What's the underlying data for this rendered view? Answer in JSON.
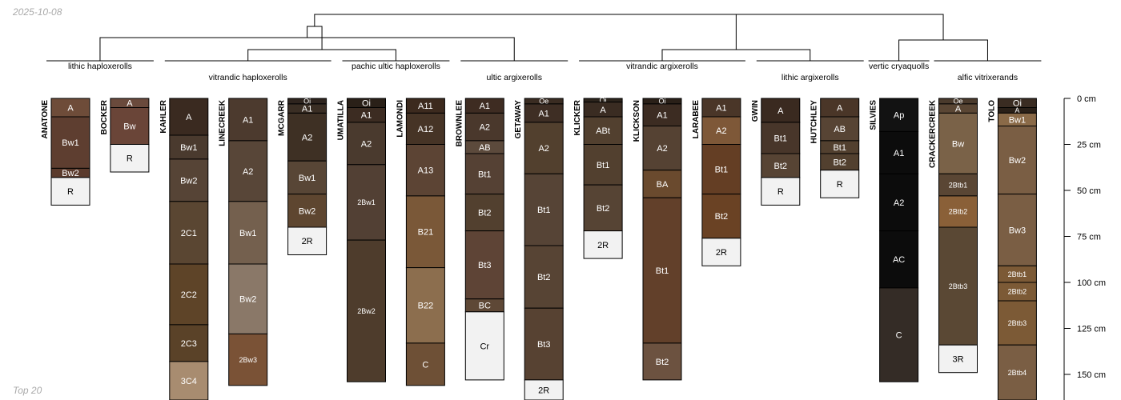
{
  "page": {
    "date": "2025-10-08",
    "footer": "Top 20"
  },
  "chart_data": {
    "type": "soil-profile-sketch",
    "title": "",
    "ylabel": "",
    "depth_unit": "cm",
    "ylim": [
      0,
      160
    ],
    "depth_ticks": [
      {
        "depth": 0,
        "label": "0 cm"
      },
      {
        "depth": 25,
        "label": "25 cm"
      },
      {
        "depth": 50,
        "label": "50 cm"
      },
      {
        "depth": 75,
        "label": "75 cm"
      },
      {
        "depth": 100,
        "label": "100 cm"
      },
      {
        "depth": 125,
        "label": "125 cm"
      },
      {
        "depth": 150,
        "label": "150 cm"
      }
    ],
    "groups": [
      {
        "label": "lithic haploxerolls",
        "members": [
          0,
          1
        ]
      },
      {
        "label": "vitrandic haploxerolls",
        "members": [
          2,
          3,
          4
        ]
      },
      {
        "label": "pachic ultic haploxerolls",
        "members": [
          5,
          6
        ]
      },
      {
        "label": "ultic argixerolls",
        "members": [
          7,
          8
        ]
      },
      {
        "label": "vitrandic argixerolls",
        "members": [
          9,
          10,
          11
        ]
      },
      {
        "label": "lithic argixerolls",
        "members": [
          12,
          13
        ]
      },
      {
        "label": "vertic cryaquolls",
        "members": [
          14
        ]
      },
      {
        "label": "alfic vitrixerands",
        "members": [
          15,
          16
        ]
      }
    ],
    "profiles": [
      {
        "name": "ANATONE",
        "horizons": [
          {
            "name": "A",
            "top": 0,
            "bottom": 10,
            "color": "#6e4c39"
          },
          {
            "name": "Bw1",
            "top": 10,
            "bottom": 38,
            "color": "#5e3e30"
          },
          {
            "name": "Bw2",
            "top": 38,
            "bottom": 43,
            "color": "#5a3a2c"
          },
          {
            "name": "R",
            "top": 43,
            "bottom": 58,
            "color": "#f2f2f2"
          }
        ]
      },
      {
        "name": "BOCKER",
        "horizons": [
          {
            "name": "A",
            "top": 0,
            "bottom": 5,
            "color": "#6a4a3c"
          },
          {
            "name": "Bw",
            "top": 5,
            "bottom": 25,
            "color": "#6a4538"
          },
          {
            "name": "R",
            "top": 25,
            "bottom": 40,
            "color": "#f2f2f2"
          }
        ]
      },
      {
        "name": "KAHLER",
        "horizons": [
          {
            "name": "A",
            "top": 0,
            "bottom": 20,
            "color": "#3a2a20"
          },
          {
            "name": "Bw1",
            "top": 20,
            "bottom": 33,
            "color": "#4a3a2e"
          },
          {
            "name": "Bw2",
            "top": 33,
            "bottom": 56,
            "color": "#564436"
          },
          {
            "name": "2C1",
            "top": 56,
            "bottom": 90,
            "color": "#5a4632"
          },
          {
            "name": "2C2",
            "top": 90,
            "bottom": 123,
            "color": "#5e4428"
          },
          {
            "name": "2C3",
            "top": 123,
            "bottom": 143,
            "color": "#5a4228"
          },
          {
            "name": "3C4",
            "top": 143,
            "bottom": 165,
            "color": "#a88c70"
          }
        ]
      },
      {
        "name": "LINECREEK",
        "horizons": [
          {
            "name": "A1",
            "top": 0,
            "bottom": 23,
            "color": "#4c3a2e"
          },
          {
            "name": "A2",
            "top": 23,
            "bottom": 56,
            "color": "#584638"
          },
          {
            "name": "Bw1",
            "top": 56,
            "bottom": 90,
            "color": "#74604e"
          },
          {
            "name": "Bw2",
            "top": 90,
            "bottom": 128,
            "color": "#8a7868"
          },
          {
            "name": "2Bw3",
            "top": 128,
            "bottom": 156,
            "color": "#7a5236"
          }
        ]
      },
      {
        "name": "MCGARR",
        "horizons": [
          {
            "name": "Oi",
            "top": 0,
            "bottom": 3,
            "color": "#2e241e"
          },
          {
            "name": "A1",
            "top": 3,
            "bottom": 8,
            "color": "#3a2e24"
          },
          {
            "name": "A2",
            "top": 8,
            "bottom": 34,
            "color": "#3e3024"
          },
          {
            "name": "Bw1",
            "top": 34,
            "bottom": 52,
            "color": "#584636"
          },
          {
            "name": "Bw2",
            "top": 52,
            "bottom": 70,
            "color": "#5e4630"
          },
          {
            "name": "2R",
            "top": 70,
            "bottom": 85,
            "color": "#f2f2f2"
          }
        ]
      },
      {
        "name": "UMATILLA",
        "horizons": [
          {
            "name": "Oi",
            "top": 0,
            "bottom": 5,
            "color": "#2a2018"
          },
          {
            "name": "A1",
            "top": 5,
            "bottom": 13,
            "color": "#3c2c22"
          },
          {
            "name": "A2",
            "top": 13,
            "bottom": 36,
            "color": "#4a3a2e"
          },
          {
            "name": "2Bw1",
            "top": 36,
            "bottom": 77,
            "color": "#524034"
          },
          {
            "name": "2Bw2",
            "top": 77,
            "bottom": 154,
            "color": "#4e3c2c"
          }
        ]
      },
      {
        "name": "LAMONDI",
        "horizons": [
          {
            "name": "A11",
            "top": 0,
            "bottom": 8,
            "color": "#3c2a1e"
          },
          {
            "name": "A12",
            "top": 8,
            "bottom": 25,
            "color": "#463426"
          },
          {
            "name": "A13",
            "top": 25,
            "bottom": 53,
            "color": "#5c4434"
          },
          {
            "name": "B21",
            "top": 53,
            "bottom": 92,
            "color": "#7a5838"
          },
          {
            "name": "B22",
            "top": 92,
            "bottom": 133,
            "color": "#8c6e4e"
          },
          {
            "name": "C",
            "top": 133,
            "bottom": 156,
            "color": "#6e5036"
          }
        ]
      },
      {
        "name": "BROWNLEE",
        "horizons": [
          {
            "name": "A1",
            "top": 0,
            "bottom": 8,
            "color": "#3e2c22"
          },
          {
            "name": "A2",
            "top": 8,
            "bottom": 23,
            "color": "#4a382c"
          },
          {
            "name": "AB",
            "top": 23,
            "bottom": 30,
            "color": "#5c4a3c"
          },
          {
            "name": "Bt1",
            "top": 30,
            "bottom": 52,
            "color": "#554134"
          },
          {
            "name": "Bt2",
            "top": 52,
            "bottom": 72,
            "color": "#52402f"
          },
          {
            "name": "Bt3",
            "top": 72,
            "bottom": 109,
            "color": "#5e4436"
          },
          {
            "name": "BC",
            "top": 109,
            "bottom": 116,
            "color": "#5e4836"
          },
          {
            "name": "Cr",
            "top": 116,
            "bottom": 153,
            "color": "#f2f2f2"
          }
        ]
      },
      {
        "name": "GETAWAY",
        "horizons": [
          {
            "name": "Oe",
            "top": 0,
            "bottom": 3,
            "color": "#3a2c22"
          },
          {
            "name": "A1",
            "top": 3,
            "bottom": 13,
            "color": "#3e2e24"
          },
          {
            "name": "A2",
            "top": 13,
            "bottom": 41,
            "color": "#52402e"
          },
          {
            "name": "Bt1",
            "top": 41,
            "bottom": 80,
            "color": "#564436"
          },
          {
            "name": "Bt2",
            "top": 80,
            "bottom": 114,
            "color": "#574434"
          },
          {
            "name": "Bt3",
            "top": 114,
            "bottom": 153,
            "color": "#574232"
          },
          {
            "name": "2R",
            "top": 153,
            "bottom": 168,
            "color": "#f2f2f2"
          }
        ]
      },
      {
        "name": "KLICKER",
        "horizons": [
          {
            "name": "Oi",
            "top": 0,
            "bottom": 2,
            "color": "#2c241c"
          },
          {
            "name": "A",
            "top": 2,
            "bottom": 10,
            "color": "#3a2c22"
          },
          {
            "name": "ABt",
            "top": 10,
            "bottom": 25,
            "color": "#52402f"
          },
          {
            "name": "Bt1",
            "top": 25,
            "bottom": 47,
            "color": "#52402f"
          },
          {
            "name": "Bt2",
            "top": 47,
            "bottom": 72,
            "color": "#564434"
          },
          {
            "name": "2R",
            "top": 72,
            "bottom": 87,
            "color": "#f2f2f2"
          }
        ]
      },
      {
        "name": "KLICKSON",
        "horizons": [
          {
            "name": "Oi",
            "top": 0,
            "bottom": 3,
            "color": "#2a2018"
          },
          {
            "name": "A1",
            "top": 3,
            "bottom": 15,
            "color": "#3c2c22"
          },
          {
            "name": "A2",
            "top": 15,
            "bottom": 39,
            "color": "#554233"
          },
          {
            "name": "BA",
            "top": 39,
            "bottom": 54,
            "color": "#6a4a2e"
          },
          {
            "name": "Bt1",
            "top": 54,
            "bottom": 133,
            "color": "#62402a"
          },
          {
            "name": "Bt2",
            "top": 133,
            "bottom": 153,
            "color": "#6c5240"
          }
        ]
      },
      {
        "name": "LARABEE",
        "horizons": [
          {
            "name": "A1",
            "top": 0,
            "bottom": 10,
            "color": "#4a3628"
          },
          {
            "name": "A2",
            "top": 10,
            "bottom": 25,
            "color": "#7e5838"
          },
          {
            "name": "Bt1",
            "top": 25,
            "bottom": 52,
            "color": "#643e24"
          },
          {
            "name": "Bt2",
            "top": 52,
            "bottom": 76,
            "color": "#6a4224"
          },
          {
            "name": "2R",
            "top": 76,
            "bottom": 91,
            "color": "#f2f2f2"
          }
        ]
      },
      {
        "name": "GWIN",
        "horizons": [
          {
            "name": "A",
            "top": 0,
            "bottom": 13,
            "color": "#3a2a20"
          },
          {
            "name": "Bt1",
            "top": 13,
            "bottom": 30,
            "color": "#48362a"
          },
          {
            "name": "Bt2",
            "top": 30,
            "bottom": 43,
            "color": "#574434"
          },
          {
            "name": "R",
            "top": 43,
            "bottom": 58,
            "color": "#f2f2f2"
          }
        ]
      },
      {
        "name": "HUTCHLEY",
        "horizons": [
          {
            "name": "A",
            "top": 0,
            "bottom": 10,
            "color": "#4a3628"
          },
          {
            "name": "AB",
            "top": 10,
            "bottom": 23,
            "color": "#574434"
          },
          {
            "name": "Bt1",
            "top": 23,
            "bottom": 30,
            "color": "#52402f"
          },
          {
            "name": "Bt2",
            "top": 30,
            "bottom": 39,
            "color": "#52402f"
          },
          {
            "name": "R",
            "top": 39,
            "bottom": 54,
            "color": "#f2f2f2"
          }
        ]
      },
      {
        "name": "SILVIES",
        "horizons": [
          {
            "name": "Ap",
            "top": 0,
            "bottom": 18,
            "color": "#121212"
          },
          {
            "name": "A1",
            "top": 18,
            "bottom": 41,
            "color": "#0c0c0c"
          },
          {
            "name": "A2",
            "top": 41,
            "bottom": 72,
            "color": "#0c0c0c"
          },
          {
            "name": "AC",
            "top": 72,
            "bottom": 103,
            "color": "#0c0c0c"
          },
          {
            "name": "C",
            "top": 103,
            "bottom": 154,
            "color": "#342c26"
          }
        ]
      },
      {
        "name": "CRACKERCREEK",
        "horizons": [
          {
            "name": "Oe",
            "top": 0,
            "bottom": 3,
            "color": "#4a3a2c"
          },
          {
            "name": "A",
            "top": 3,
            "bottom": 8,
            "color": "#5a4634"
          },
          {
            "name": "Bw",
            "top": 8,
            "bottom": 41,
            "color": "#7a6248"
          },
          {
            "name": "2Btb1",
            "top": 41,
            "bottom": 53,
            "color": "#5a4634"
          },
          {
            "name": "2Btb2",
            "top": 53,
            "bottom": 70,
            "color": "#8a6038"
          },
          {
            "name": "2Btb3",
            "top": 70,
            "bottom": 134,
            "color": "#5a4834"
          },
          {
            "name": "3R",
            "top": 134,
            "bottom": 149,
            "color": "#f2f2f2"
          }
        ]
      },
      {
        "name": "TOLO",
        "horizons": [
          {
            "name": "Oi",
            "top": 0,
            "bottom": 5,
            "color": "#3a2c22"
          },
          {
            "name": "A",
            "top": 5,
            "bottom": 8,
            "color": "#2a2018"
          },
          {
            "name": "Bw1",
            "top": 8,
            "bottom": 15,
            "color": "#8a6a48"
          },
          {
            "name": "Bw2",
            "top": 15,
            "bottom": 52,
            "color": "#7a5e44"
          },
          {
            "name": "Bw3",
            "top": 52,
            "bottom": 91,
            "color": "#7a5e44"
          },
          {
            "name": "2Btb1",
            "top": 91,
            "bottom": 100,
            "color": "#7c5a36"
          },
          {
            "name": "2Btb2",
            "top": 100,
            "bottom": 110,
            "color": "#7c5a36"
          },
          {
            "name": "2Btb3",
            "top": 110,
            "bottom": 134,
            "color": "#7c5a36"
          },
          {
            "name": "2Btb4",
            "top": 134,
            "bottom": 165,
            "color": "#7a5e44"
          }
        ]
      }
    ]
  }
}
